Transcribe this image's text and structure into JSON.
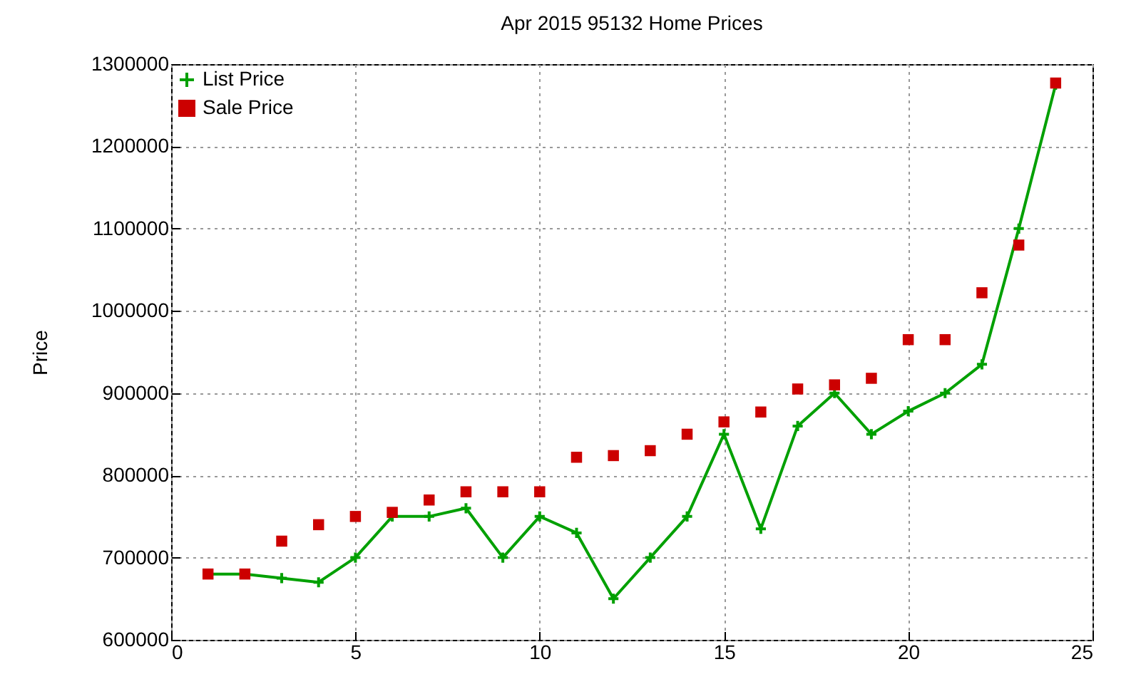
{
  "chart_data": {
    "type": "line",
    "title": "Apr 2015 95132 Home Prices",
    "ylabel": "Price",
    "x": [
      1,
      2,
      3,
      4,
      5,
      6,
      7,
      8,
      9,
      10,
      11,
      12,
      13,
      14,
      15,
      16,
      17,
      18,
      19,
      20,
      21,
      22,
      23,
      24
    ],
    "series": [
      {
        "name": "List Price",
        "color": "#00a000",
        "marker": "cross",
        "values": [
          680000,
          680000,
          675000,
          670000,
          700000,
          750000,
          750000,
          760000,
          700000,
          750000,
          730000,
          650000,
          700000,
          750000,
          850000,
          735000,
          860000,
          900000,
          850000,
          878000,
          900000,
          935000,
          1100000,
          1275000
        ]
      },
      {
        "name": "Sale Price",
        "type": "scatter",
        "color": "#cc0000",
        "marker": "square",
        "values": [
          680000,
          680000,
          720000,
          740000,
          750000,
          755000,
          770000,
          780000,
          780000,
          780000,
          822000,
          824000,
          830000,
          850000,
          865000,
          877000,
          905000,
          910000,
          918000,
          965000,
          965000,
          1022000,
          1080000,
          1277000
        ]
      }
    ],
    "xlim": [
      0,
      25
    ],
    "xticks": [
      0,
      5,
      10,
      15,
      20,
      25
    ],
    "ylim": [
      600000,
      1300000
    ],
    "yticks": [
      600000,
      700000,
      800000,
      900000,
      1000000,
      1100000,
      1200000,
      1300000
    ],
    "grid": true,
    "legend": "top left"
  }
}
